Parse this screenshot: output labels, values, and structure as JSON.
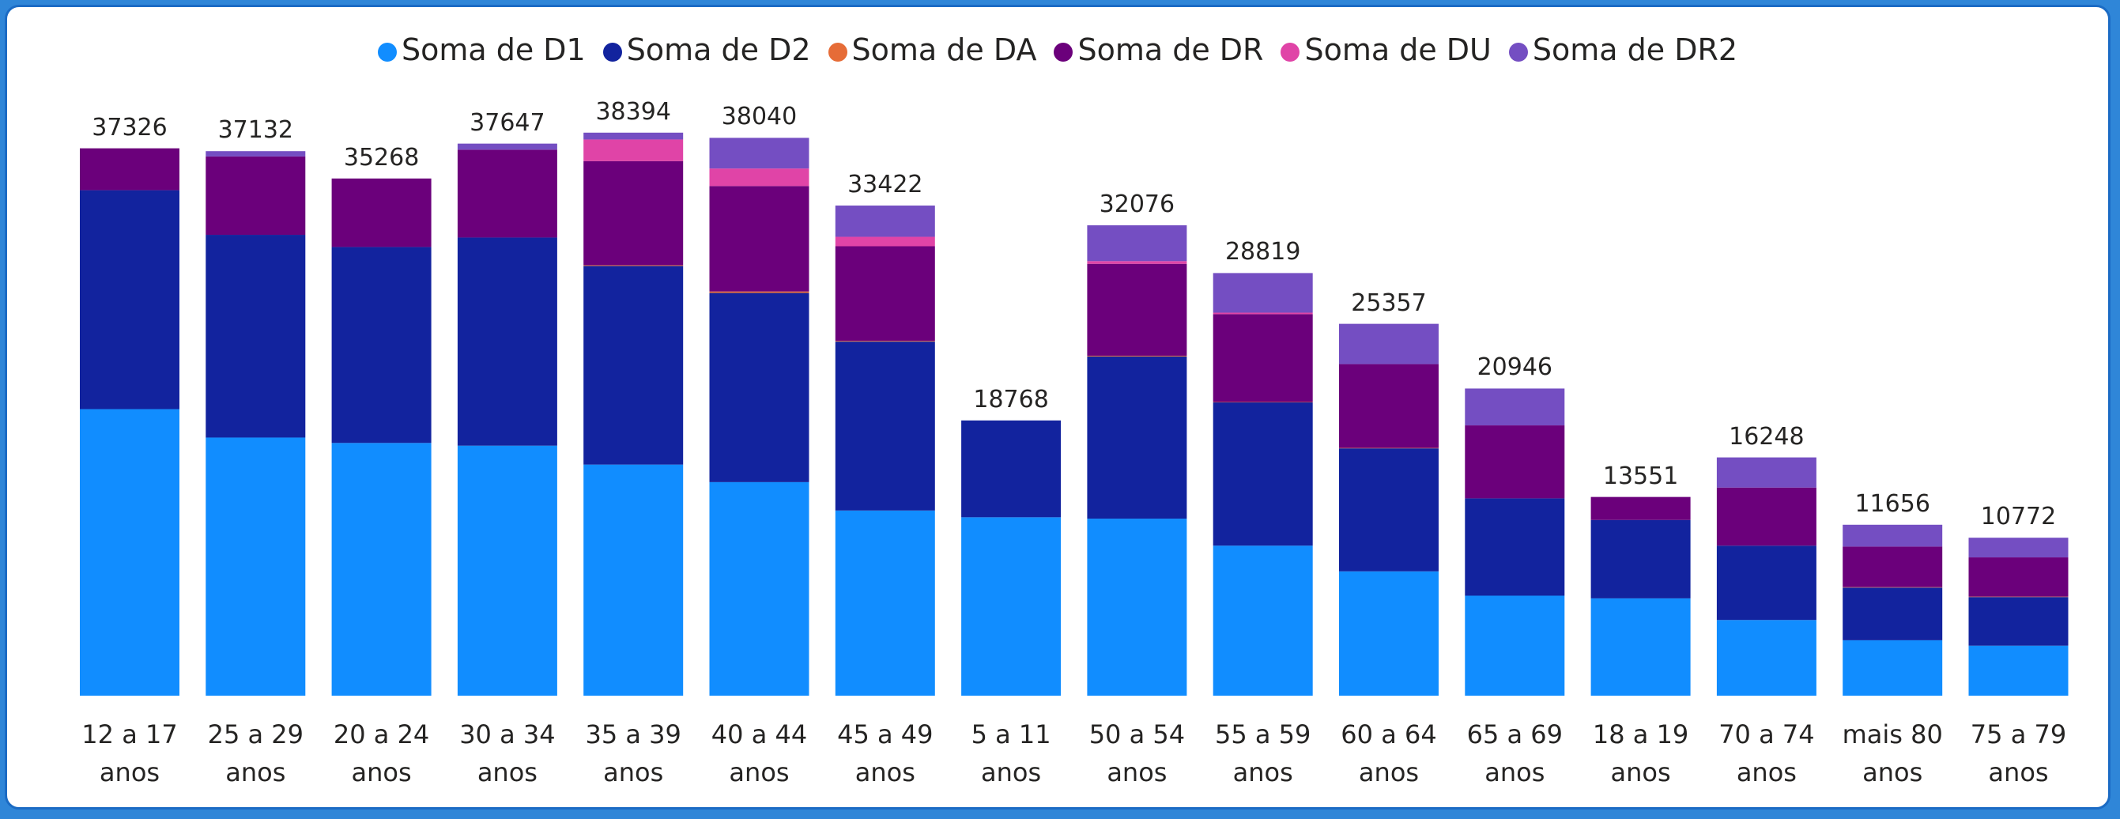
{
  "chart_data": {
    "type": "stacked_bar",
    "categories": [
      "12 a 17 anos",
      "25 a 29 anos",
      "20 a 24 anos",
      "30 a 34 anos",
      "35 a 39 anos",
      "40 a 44 anos",
      "45 a 49 anos",
      "5 a 11 anos",
      "50 a 54 anos",
      "55 a 59 anos",
      "60 a 64 anos",
      "65 a 69 anos",
      "18 a 19 anos",
      "70 a 74 anos",
      "mais 80 anos",
      "75 a 79 anos"
    ],
    "series": [
      {
        "name": "Soma de D1",
        "color": "#118DFF",
        "values": [
          19540,
          17603,
          17234,
          17050,
          15759,
          14561,
          12626,
          12165,
          12073,
          10230,
          8479,
          6820,
          6636,
          5161,
          3779,
          3410
        ]
      },
      {
        "name": "Soma de D2",
        "color": "#12239E",
        "values": [
          14930,
          13824,
          13363,
          14193,
          13548,
          12902,
          11520,
          6603,
          11059,
          9769,
          8387,
          6636,
          5345,
          5069,
          3594,
          3318
        ]
      },
      {
        "name": "Soma de DA",
        "color": "#E66C37",
        "values": [
          0,
          0,
          0,
          0,
          50,
          100,
          50,
          0,
          50,
          30,
          30,
          0,
          0,
          0,
          30,
          30
        ]
      },
      {
        "name": "Soma de DR",
        "color": "#6B007B",
        "values": [
          2856,
          5345,
          4671,
          5990,
          7096,
          7188,
          6451,
          0,
          6267,
          5990,
          5714,
          4977,
          1570,
          3963,
          2765,
          2673
        ]
      },
      {
        "name": "Soma de DU",
        "color": "#E044A7",
        "values": [
          0,
          0,
          0,
          0,
          1475,
          1198,
          645,
          0,
          184,
          100,
          0,
          0,
          0,
          0,
          0,
          0
        ]
      },
      {
        "name": "Soma de DR2",
        "color": "#744EC2",
        "values": [
          0,
          360,
          0,
          414,
          466,
          2091,
          2130,
          0,
          2443,
          2700,
          2747,
          2513,
          0,
          2055,
          1488,
          1341
        ]
      }
    ],
    "totals": [
      37326,
      37132,
      35268,
      37647,
      38394,
      38040,
      33422,
      18768,
      32076,
      28819,
      25357,
      20946,
      13551,
      16248,
      11656,
      10772
    ],
    "ylim": [
      0,
      40000
    ]
  }
}
